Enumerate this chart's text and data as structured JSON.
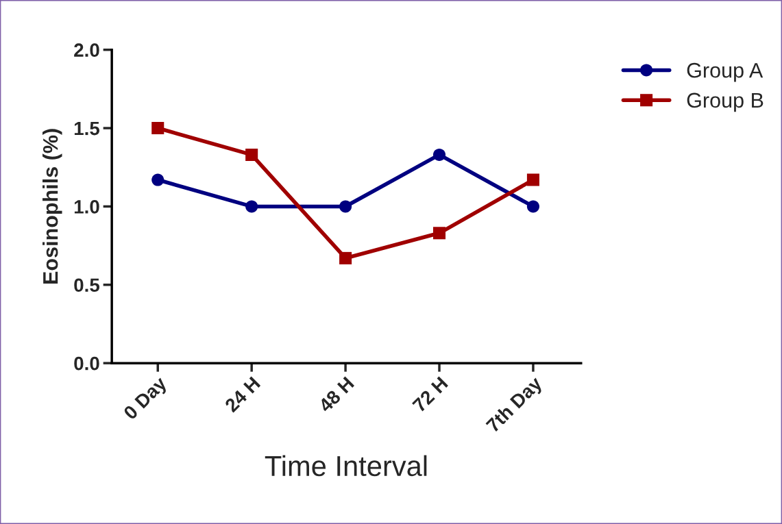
{
  "chart_data": {
    "type": "line",
    "xlabel": "Time Interval",
    "ylabel": "Eosinophils (%)",
    "categories": [
      "0 Day",
      "24 H",
      "48 H",
      "72 H",
      "7th Day"
    ],
    "series": [
      {
        "name": "Group A",
        "color": "#000080",
        "values": [
          1.17,
          1.0,
          1.0,
          1.33,
          1.0
        ],
        "marker": "circle"
      },
      {
        "name": "Group B",
        "color": "#a00000",
        "values": [
          1.5,
          1.33,
          0.67,
          0.83,
          1.17
        ],
        "marker": "square"
      }
    ],
    "ylim": [
      0,
      2.0
    ],
    "yticks": [
      {
        "value": 0,
        "label": "0.0"
      },
      0.5,
      {
        "value": 1,
        "label": "1.0"
      },
      1.5,
      {
        "value": 2,
        "label": "2.0"
      }
    ],
    "grid": false,
    "legend": "top right",
    "line_style": "solid"
  }
}
